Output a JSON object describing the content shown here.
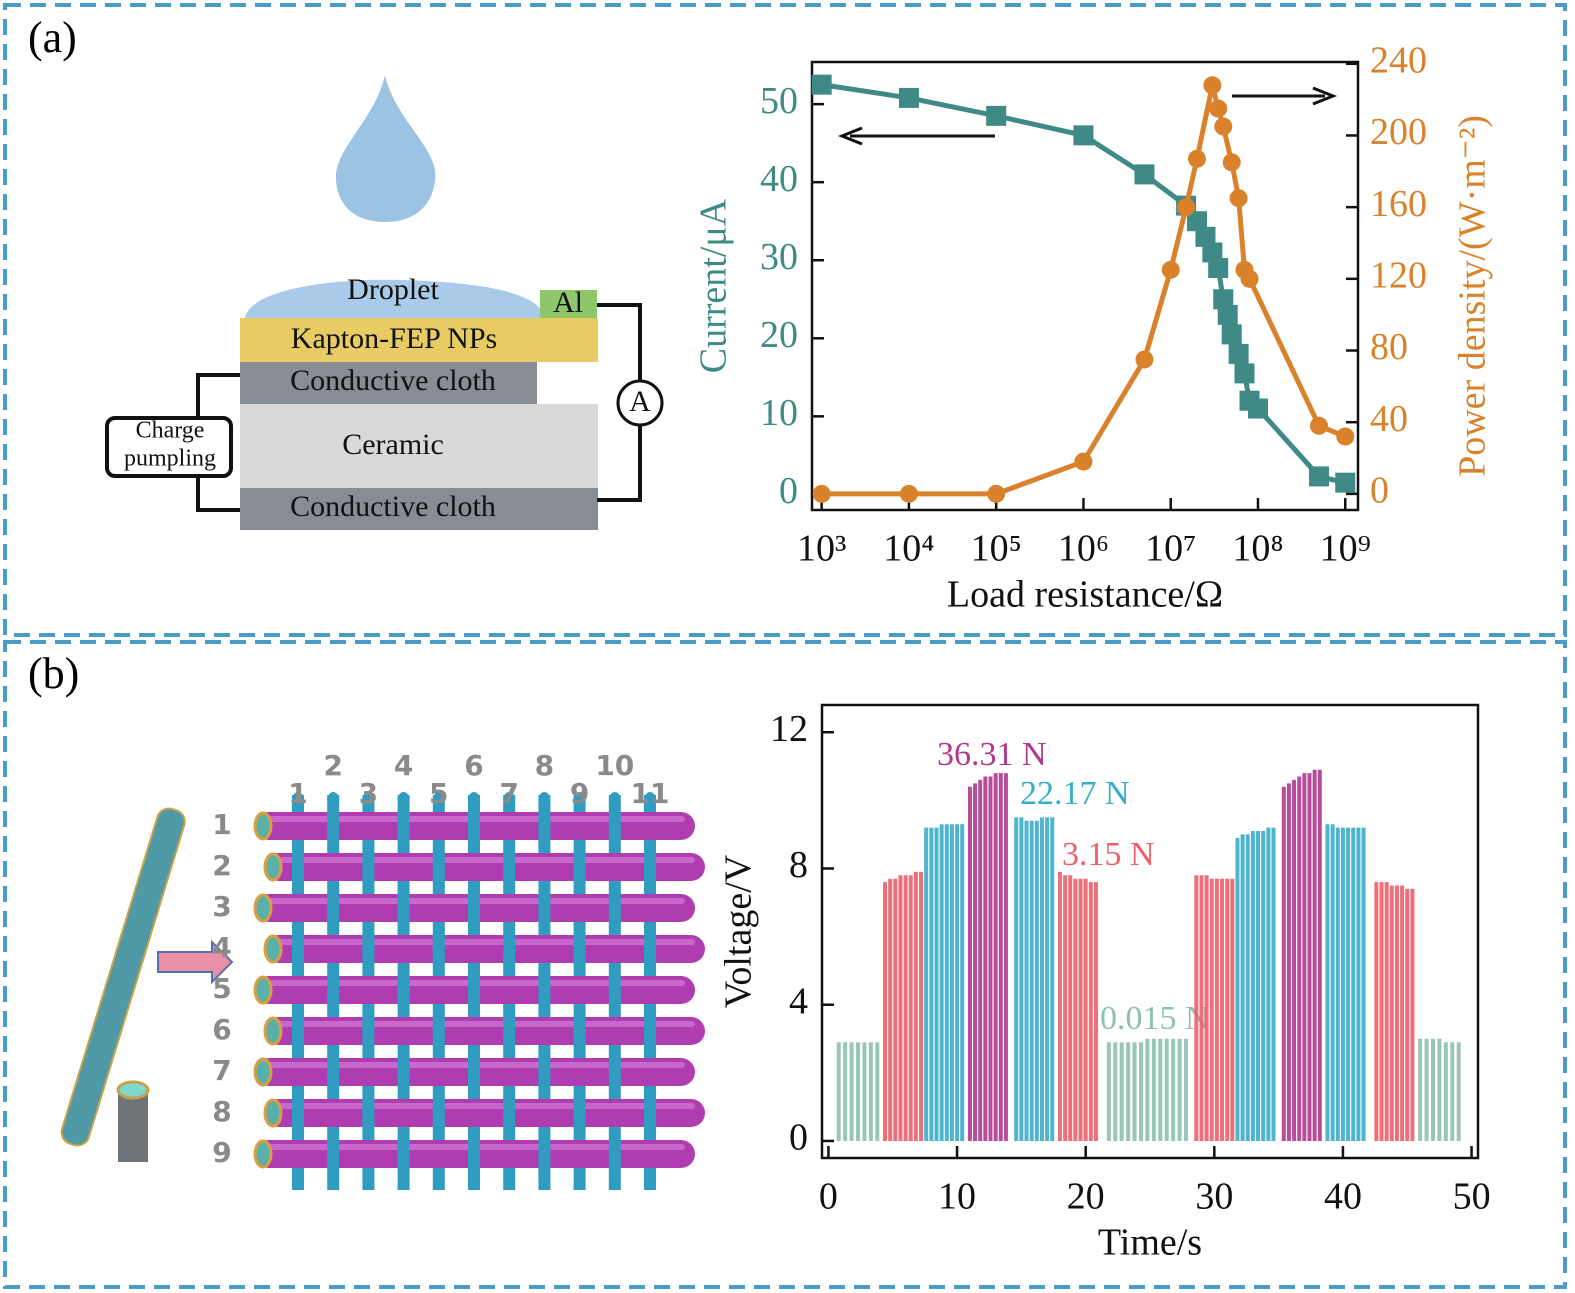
{
  "panel_labels": [
    "(a)",
    "(b)"
  ],
  "diagram_a": {
    "droplet": "Droplet",
    "electrode": "Al",
    "layers": [
      "Kapton-FEP NPs",
      "Conductive cloth",
      "Ceramic",
      "Conductive cloth"
    ],
    "meter": "A",
    "module": [
      "Charge",
      "pumpling"
    ]
  },
  "diagram_b": {
    "column_labels": [
      "1",
      "2",
      "3",
      "4",
      "5",
      "6",
      "7",
      "8",
      "9",
      "10",
      "11"
    ],
    "row_labels": [
      "1",
      "2",
      "3",
      "4",
      "5",
      "6",
      "7",
      "8",
      "9"
    ]
  },
  "chart_data": [
    {
      "type": "line",
      "xlabel": "Load resistance/Ω",
      "ylabel": "Current/μA",
      "y2label": "Power density/(W·m⁻²)",
      "xscale": "log",
      "xlim": [
        775,
        1400000000
      ],
      "xticks": [
        {
          "value": 1000,
          "label": "10³"
        },
        {
          "value": 10000,
          "label": "10⁴"
        },
        {
          "value": 100000,
          "label": "10⁵"
        },
        {
          "value": 1000000,
          "label": "10⁶"
        },
        {
          "value": 10000000,
          "label": "10⁷"
        },
        {
          "value": 100000000,
          "label": "10⁸"
        },
        {
          "value": 1000000000,
          "label": "10⁹"
        }
      ],
      "ylim": [
        -2,
        55.4
      ],
      "yticks": [
        0,
        10,
        20,
        30,
        40,
        50
      ],
      "y2lim": [
        -9,
        241
      ],
      "y2ticks": [
        0,
        40,
        80,
        120,
        160,
        200,
        240
      ],
      "series": [
        {
          "color": "#3f8a86",
          "marker": "square",
          "x": [
            1000,
            10000,
            100000,
            1000000,
            5000000,
            15000000,
            20000000,
            25000000,
            30000000,
            35000000,
            40000000,
            45000000,
            50000000,
            60000000,
            70000000,
            80000000,
            100000000,
            500000000,
            1000000000
          ],
          "values": [
            52.5,
            50.8,
            48.5,
            46,
            41,
            37,
            35,
            33,
            31,
            29,
            25,
            23,
            20.5,
            18,
            15.5,
            12,
            11,
            2.3,
            1.5
          ]
        },
        {
          "color": "#d9822b",
          "marker": "circle",
          "axis": "y2",
          "x": [
            1000,
            10000,
            100000,
            1000000,
            5000000,
            10000000,
            15000000,
            20000000,
            30000000,
            35000000,
            40000000,
            50000000,
            60000000,
            70000000,
            80000000,
            500000000,
            1000000000
          ],
          "values": [
            0,
            0,
            0,
            18,
            75,
            125,
            160,
            187,
            228,
            215,
            205,
            185,
            165,
            125,
            120,
            38,
            32
          ]
        }
      ]
    },
    {
      "type": "spike",
      "xlabel": "Time/s",
      "ylabel": "Voltage/V",
      "xlim": [
        -0.5,
        50.5
      ],
      "xticks": [
        0,
        10,
        20,
        30,
        40,
        50
      ],
      "ylim": [
        -0.5,
        12.8
      ],
      "yticks": [
        0,
        4,
        8,
        12
      ],
      "series": [
        {
          "name": "0.015 N",
          "color": "#8fc2ae",
          "x": [
            0.8,
            1.3,
            1.8,
            2.3,
            2.8,
            3.3,
            3.8,
            21.8,
            22.3,
            22.8,
            23.3,
            23.8,
            24.3,
            24.8,
            25.3,
            25.8,
            26.3,
            26.8,
            27.3,
            27.8,
            46,
            46.5,
            47,
            47.5,
            48,
            48.5,
            49
          ],
          "values": [
            2.9,
            2.9,
            2.9,
            2.9,
            2.9,
            2.9,
            2.9,
            2.9,
            2.9,
            2.9,
            2.9,
            2.9,
            2.9,
            3.0,
            3.0,
            3.0,
            3.0,
            3.0,
            3.0,
            3.0,
            3.0,
            3.0,
            3.0,
            3.0,
            2.9,
            2.9,
            2.9
          ]
        },
        {
          "name": "3.15 N",
          "color": "#ef5f6c",
          "x": [
            4.4,
            4.8,
            5.2,
            5.6,
            6.0,
            6.4,
            6.8,
            7.2,
            18.0,
            18.4,
            18.8,
            19.2,
            19.6,
            20.0,
            20.4,
            20.8,
            28.6,
            29.0,
            29.4,
            29.8,
            30.2,
            30.6,
            31.0,
            31.4,
            42.6,
            43.0,
            43.4,
            43.8,
            44.2,
            44.6,
            45.0,
            45.4
          ],
          "values": [
            7.6,
            7.7,
            7.7,
            7.8,
            7.8,
            7.8,
            7.9,
            7.9,
            7.9,
            7.8,
            7.8,
            7.7,
            7.7,
            7.7,
            7.6,
            7.6,
            7.8,
            7.8,
            7.8,
            7.7,
            7.7,
            7.7,
            7.7,
            7.7,
            7.6,
            7.6,
            7.6,
            7.5,
            7.5,
            7.5,
            7.4,
            7.4
          ]
        },
        {
          "name": "22.17 N",
          "color": "#3aaec8",
          "x": [
            7.6,
            8.0,
            8.4,
            8.8,
            9.2,
            9.6,
            10.0,
            10.4,
            14.6,
            15.0,
            15.4,
            15.8,
            16.2,
            16.6,
            17.0,
            17.4,
            31.8,
            32.2,
            32.6,
            33.0,
            33.4,
            33.8,
            34.2,
            34.6,
            38.8,
            39.2,
            39.6,
            40.0,
            40.4,
            40.8,
            41.2,
            41.6
          ],
          "values": [
            9.2,
            9.2,
            9.2,
            9.3,
            9.3,
            9.3,
            9.3,
            9.3,
            9.5,
            9.5,
            9.4,
            9.4,
            9.4,
            9.5,
            9.5,
            9.5,
            8.9,
            9.0,
            9.0,
            9.1,
            9.1,
            9.1,
            9.2,
            9.2,
            9.3,
            9.3,
            9.2,
            9.2,
            9.2,
            9.2,
            9.2,
            9.2
          ]
        },
        {
          "name": "36.31 N",
          "color": "#b0398f",
          "x": [
            11.0,
            11.4,
            11.8,
            12.2,
            12.6,
            13.0,
            13.4,
            13.8,
            35.4,
            35.8,
            36.2,
            36.6,
            37.0,
            37.4,
            37.8,
            38.2
          ],
          "values": [
            10.4,
            10.5,
            10.6,
            10.7,
            10.7,
            10.8,
            10.8,
            10.8,
            10.4,
            10.5,
            10.6,
            10.7,
            10.8,
            10.8,
            10.9,
            10.9
          ]
        }
      ]
    }
  ]
}
